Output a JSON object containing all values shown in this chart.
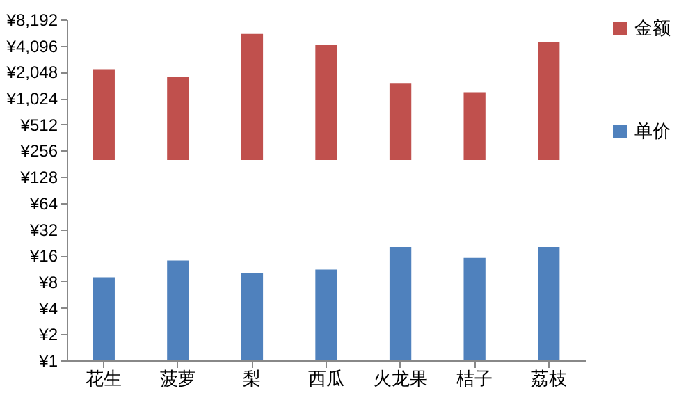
{
  "chart_data": {
    "type": "bar",
    "log": true,
    "legend": "right",
    "categories": [
      "花生",
      "菠萝",
      "梨",
      "西瓜",
      "火龙果",
      "桔子",
      "荔枝"
    ],
    "series": [
      {
        "name": "金额",
        "color": "#c0504d",
        "base": [
          200,
          200,
          200,
          200,
          200,
          200,
          200
        ],
        "values": [
          2000,
          1600,
          5400,
          4000,
          1300,
          1000,
          4300
        ]
      },
      {
        "name": "单价",
        "color": "#4f81bd",
        "values": [
          9,
          14,
          10,
          11,
          20,
          15,
          20
        ]
      }
    ],
    "ylim": [
      1,
      8192
    ],
    "yticks": [
      {
        "value": 1,
        "label": "¥1"
      },
      {
        "value": 2,
        "label": "¥2"
      },
      {
        "value": 4,
        "label": "¥4"
      },
      {
        "value": 8,
        "label": "¥8"
      },
      {
        "value": 16,
        "label": "¥16"
      },
      {
        "value": 32,
        "label": "¥32"
      },
      {
        "value": 64,
        "label": "¥64"
      },
      {
        "value": 128,
        "label": "¥128"
      },
      {
        "value": 256,
        "label": "¥256"
      },
      {
        "value": 512,
        "label": "¥512"
      },
      {
        "value": 1024,
        "label": "¥1,024"
      },
      {
        "value": 2048,
        "label": "¥2,048"
      },
      {
        "value": 4096,
        "label": "¥4,096"
      },
      {
        "value": 8192,
        "label": "¥8,192"
      }
    ]
  }
}
